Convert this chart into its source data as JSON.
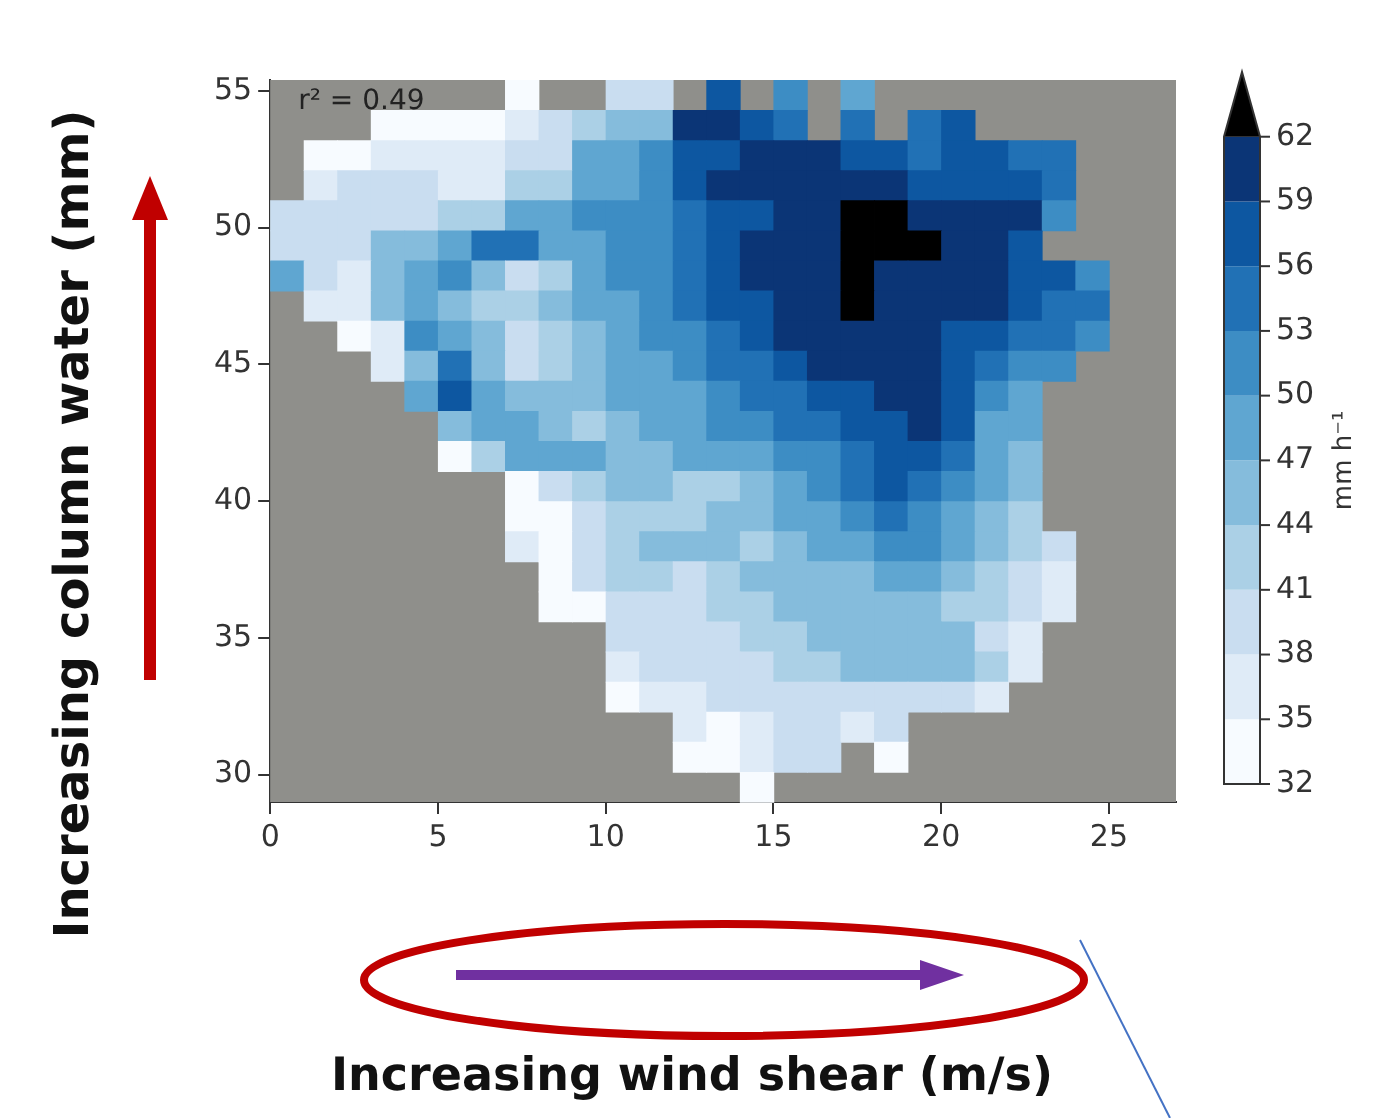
{
  "chart_data": {
    "type": "heatmap",
    "xlabel": "Increasing wind shear (m/s)",
    "ylabel": "Increasing column water (mm)",
    "clabel": "mm h⁻¹",
    "annotations": [
      "r² = 0.49"
    ],
    "xlim": [
      0,
      27
    ],
    "xticks": [
      0,
      5,
      10,
      15,
      20,
      25
    ],
    "ylim": [
      29,
      55.4
    ],
    "yticks": [
      30,
      35,
      40,
      45,
      50,
      55
    ],
    "clim": [
      32,
      65
    ],
    "cticks": [
      32,
      35,
      38,
      41,
      44,
      47,
      50,
      53,
      56,
      59,
      62
    ],
    "colors": [
      "#f7fbff",
      "#dfebf7",
      "#c9ddf0",
      "#abd0e6",
      "#85bcdc",
      "#5fa6d1",
      "#3d8dc4",
      "#2171b5",
      "#0d57a1",
      "#0b3576",
      "#000000"
    ],
    "cells": [
      [
        null,
        null,
        null,
        null,
        null,
        null,
        null,
        34,
        null,
        null,
        40,
        40,
        null,
        58,
        null,
        52,
        null,
        49,
        null,
        null,
        null,
        null,
        null,
        null,
        null,
        null,
        null
      ],
      [
        null,
        null,
        null,
        34,
        34,
        34,
        34,
        37,
        40,
        43,
        46,
        46,
        61,
        61,
        58,
        55,
        null,
        55,
        null,
        55,
        58,
        null,
        null,
        null,
        null,
        null,
        null
      ],
      [
        null,
        34,
        34,
        37,
        37,
        37,
        37,
        40,
        40,
        49,
        49,
        52,
        58,
        58,
        61,
        61,
        61,
        58,
        58,
        55,
        58,
        58,
        55,
        55,
        null,
        null,
        null
      ],
      [
        null,
        37,
        40,
        40,
        40,
        37,
        37,
        43,
        43,
        49,
        49,
        52,
        58,
        61,
        61,
        61,
        61,
        61,
        61,
        58,
        58,
        58,
        58,
        55,
        null,
        null,
        null
      ],
      [
        40,
        40,
        40,
        40,
        40,
        43,
        43,
        49,
        49,
        52,
        52,
        52,
        55,
        58,
        58,
        61,
        61,
        63,
        63,
        61,
        61,
        61,
        61,
        52,
        null,
        null,
        null
      ],
      [
        40,
        40,
        40,
        46,
        46,
        49,
        55,
        55,
        49,
        49,
        52,
        52,
        55,
        58,
        61,
        61,
        61,
        63,
        63,
        63,
        61,
        61,
        58,
        null,
        null,
        null,
        null
      ],
      [
        49,
        40,
        37,
        46,
        49,
        52,
        46,
        40,
        43,
        49,
        52,
        52,
        55,
        58,
        61,
        61,
        61,
        63,
        61,
        61,
        61,
        61,
        58,
        58,
        52,
        null,
        null
      ],
      [
        null,
        37,
        37,
        46,
        49,
        46,
        43,
        43,
        46,
        49,
        49,
        52,
        55,
        58,
        58,
        61,
        61,
        63,
        61,
        61,
        61,
        61,
        58,
        55,
        55,
        null,
        null
      ],
      [
        null,
        null,
        34,
        37,
        52,
        49,
        46,
        40,
        43,
        46,
        49,
        52,
        52,
        55,
        58,
        61,
        61,
        61,
        61,
        61,
        58,
        58,
        55,
        55,
        52,
        null,
        null
      ],
      [
        null,
        null,
        null,
        37,
        46,
        55,
        46,
        40,
        43,
        46,
        49,
        49,
        52,
        55,
        55,
        58,
        61,
        61,
        61,
        61,
        58,
        55,
        52,
        52,
        null,
        null,
        null
      ],
      [
        null,
        null,
        null,
        null,
        49,
        58,
        49,
        46,
        46,
        46,
        49,
        49,
        49,
        52,
        55,
        55,
        58,
        58,
        61,
        61,
        58,
        52,
        49,
        null,
        null,
        null,
        null
      ],
      [
        null,
        null,
        null,
        null,
        null,
        46,
        49,
        49,
        46,
        43,
        46,
        49,
        49,
        52,
        52,
        55,
        55,
        58,
        58,
        61,
        58,
        49,
        49,
        null,
        null,
        null,
        null
      ],
      [
        null,
        null,
        null,
        null,
        null,
        34,
        43,
        49,
        49,
        49,
        46,
        46,
        49,
        49,
        49,
        52,
        52,
        55,
        58,
        58,
        55,
        49,
        46,
        null,
        null,
        null,
        null
      ],
      [
        null,
        null,
        null,
        null,
        null,
        null,
        null,
        34,
        40,
        43,
        46,
        46,
        43,
        43,
        46,
        49,
        52,
        55,
        58,
        55,
        52,
        49,
        46,
        null,
        null,
        null,
        null
      ],
      [
        null,
        null,
        null,
        null,
        null,
        null,
        null,
        34,
        34,
        40,
        43,
        43,
        43,
        46,
        46,
        49,
        49,
        52,
        55,
        52,
        49,
        46,
        43,
        null,
        null,
        null,
        null
      ],
      [
        null,
        null,
        null,
        null,
        null,
        null,
        null,
        37,
        34,
        40,
        43,
        46,
        46,
        46,
        43,
        46,
        49,
        49,
        52,
        52,
        49,
        46,
        43,
        40,
        null,
        null,
        null
      ],
      [
        null,
        null,
        null,
        null,
        null,
        null,
        null,
        null,
        34,
        40,
        43,
        43,
        40,
        43,
        46,
        46,
        46,
        46,
        49,
        49,
        46,
        43,
        40,
        37,
        null,
        null,
        null
      ],
      [
        null,
        null,
        null,
        null,
        null,
        null,
        null,
        null,
        34,
        34,
        40,
        40,
        40,
        43,
        43,
        46,
        46,
        46,
        46,
        46,
        43,
        43,
        40,
        37,
        null,
        null,
        null
      ],
      [
        null,
        null,
        null,
        null,
        null,
        null,
        null,
        null,
        null,
        null,
        40,
        40,
        40,
        40,
        43,
        43,
        46,
        46,
        46,
        46,
        46,
        40,
        37,
        null,
        null,
        null,
        null
      ],
      [
        null,
        null,
        null,
        null,
        null,
        null,
        null,
        null,
        null,
        null,
        37,
        40,
        40,
        40,
        40,
        43,
        43,
        46,
        46,
        46,
        46,
        43,
        37,
        null,
        null,
        null,
        null
      ],
      [
        null,
        null,
        null,
        null,
        null,
        null,
        null,
        null,
        null,
        null,
        34,
        37,
        37,
        40,
        40,
        40,
        40,
        40,
        40,
        40,
        40,
        37,
        null,
        null,
        null,
        null,
        null
      ],
      [
        null,
        null,
        null,
        null,
        null,
        null,
        null,
        null,
        null,
        null,
        null,
        null,
        37,
        34,
        37,
        40,
        40,
        37,
        40,
        null,
        null,
        null,
        null,
        null,
        null,
        null,
        null
      ],
      [
        null,
        null,
        null,
        null,
        null,
        null,
        null,
        null,
        null,
        null,
        null,
        null,
        34,
        34,
        37,
        40,
        40,
        null,
        34,
        null,
        null,
        null,
        null,
        null,
        null,
        null,
        null
      ],
      [
        null,
        null,
        null,
        null,
        null,
        null,
        null,
        null,
        null,
        null,
        null,
        null,
        null,
        null,
        34,
        null,
        null,
        null,
        null,
        null,
        null,
        null,
        null,
        null,
        null,
        null,
        null
      ]
    ]
  }
}
